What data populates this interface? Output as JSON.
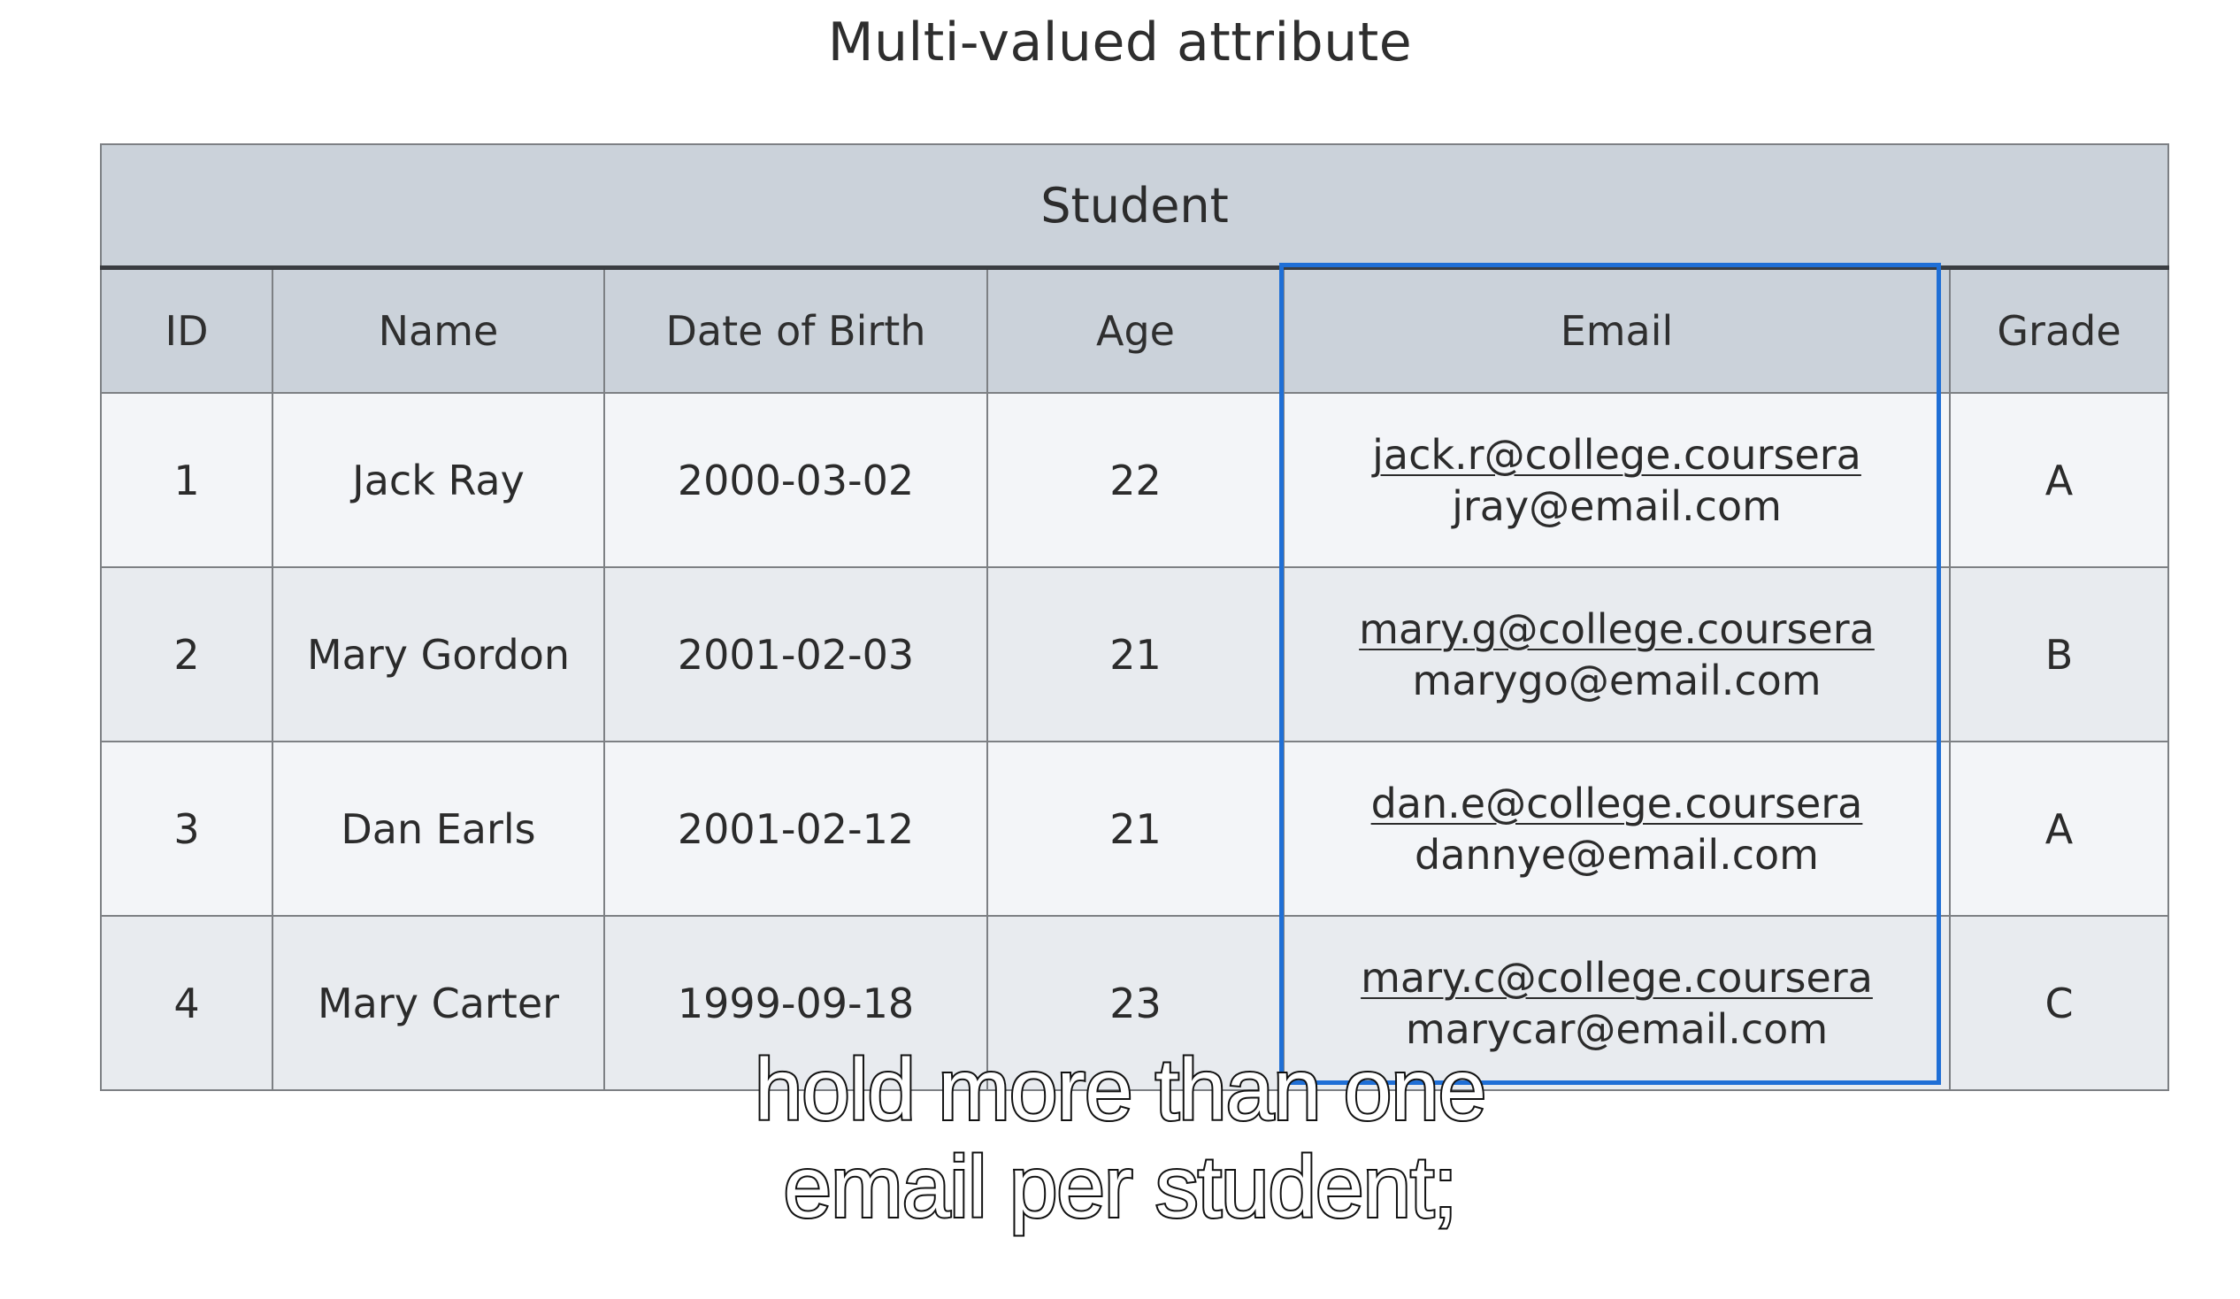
{
  "title": "Multi-valued attribute",
  "table": {
    "caption": "Student",
    "headers": [
      "ID",
      "Name",
      "Date of Birth",
      "Age",
      "Email",
      "Grade"
    ],
    "rows": [
      {
        "id": "1",
        "name": "Jack Ray",
        "dob": "2000-03-02",
        "age": "22",
        "email_primary": "jack.r@college.coursera",
        "email_secondary": "jray@email.com",
        "grade": "A"
      },
      {
        "id": "2",
        "name": "Mary Gordon",
        "dob": "2001-02-03",
        "age": "21",
        "email_primary": "mary.g@college.coursera",
        "email_secondary": "marygo@email.com",
        "grade": "B"
      },
      {
        "id": "3",
        "name": "Dan Earls",
        "dob": "2001-02-12",
        "age": "21",
        "email_primary": "dan.e@college.coursera",
        "email_secondary": "dannye@email.com",
        "grade": "A"
      },
      {
        "id": "4",
        "name": "Mary Carter",
        "dob": "1999-09-18",
        "age": "23",
        "email_primary": "mary.c@college.coursera",
        "email_secondary": "marycar@email.com",
        "grade": "C"
      }
    ]
  },
  "subtitle": {
    "line1": "hold more than one",
    "line2": "email per student;"
  },
  "colors": {
    "highlight": "#1f6fd6",
    "header_bg": "#cbd2da"
  }
}
